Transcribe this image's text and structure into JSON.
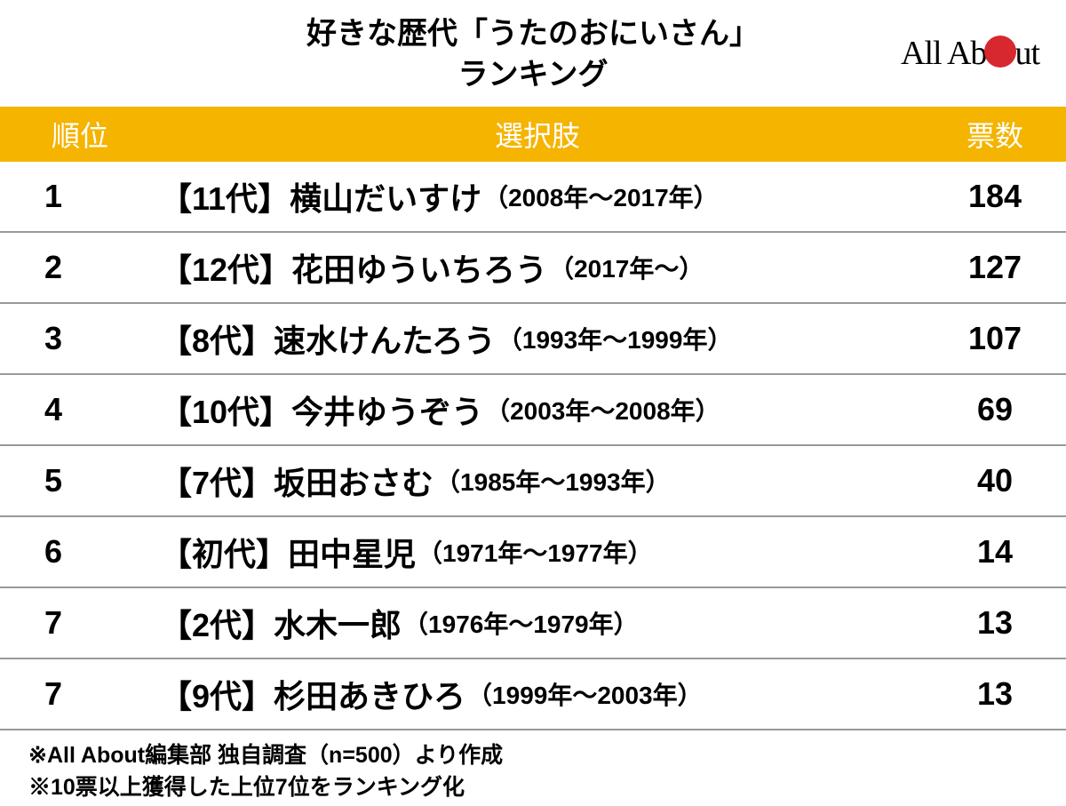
{
  "title_line1": "好きな歴代「うたのおにいさん」",
  "title_line2": "ランキング",
  "logo": {
    "text_left": "All Ab",
    "text_right": "ut",
    "dot_color": "#d7282f"
  },
  "colors": {
    "header_bg": "#f5b400",
    "header_text": "#ffffff",
    "row_border": "#999999",
    "background": "#ffffff"
  },
  "columns": {
    "rank": "順位",
    "name": "選択肢",
    "votes": "票数"
  },
  "rows": [
    {
      "rank": "1",
      "generation": "【11代】",
      "name": "横山だいすけ",
      "period": "（2008年～2017年）",
      "votes": "184"
    },
    {
      "rank": "2",
      "generation": "【12代】",
      "name": "花田ゆういちろう",
      "period": "（2017年～）",
      "votes": "127"
    },
    {
      "rank": "3",
      "generation": "【8代】",
      "name": "速水けんたろう",
      "period": "（1993年～1999年）",
      "votes": "107"
    },
    {
      "rank": "4",
      "generation": "【10代】",
      "name": "今井ゆうぞう",
      "period": "（2003年～2008年）",
      "votes": "69"
    },
    {
      "rank": "5",
      "generation": "【7代】",
      "name": "坂田おさむ",
      "period": "（1985年～1993年）",
      "votes": "40"
    },
    {
      "rank": "6",
      "generation": "【初代】",
      "name": "田中星児",
      "period": "（1971年～1977年）",
      "votes": "14"
    },
    {
      "rank": "7",
      "generation": "【2代】",
      "name": "水木一郎",
      "period": "（1976年～1979年）",
      "votes": "13"
    },
    {
      "rank": "7",
      "generation": "【9代】",
      "name": "杉田あきひろ",
      "period": "（1999年～2003年）",
      "votes": "13"
    }
  ],
  "footnotes": [
    "※All About編集部 独自調査（n=500）より作成",
    "※10票以上獲得した上位7位をランキング化"
  ]
}
